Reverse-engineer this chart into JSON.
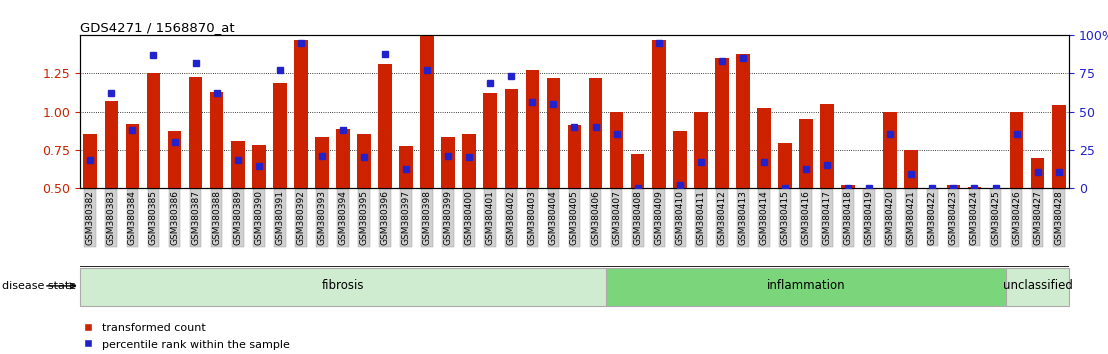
{
  "title": "GDS4271 / 1568870_at",
  "categories": [
    "GSM380382",
    "GSM380383",
    "GSM380384",
    "GSM380385",
    "GSM380386",
    "GSM380387",
    "GSM380388",
    "GSM380389",
    "GSM380390",
    "GSM380391",
    "GSM380392",
    "GSM380393",
    "GSM380394",
    "GSM380395",
    "GSM380396",
    "GSM380397",
    "GSM380398",
    "GSM380399",
    "GSM380400",
    "GSM380401",
    "GSM380402",
    "GSM380403",
    "GSM380404",
    "GSM380405",
    "GSM380406",
    "GSM380407",
    "GSM380408",
    "GSM380409",
    "GSM380410",
    "GSM380411",
    "GSM380412",
    "GSM380413",
    "GSM380414",
    "GSM380415",
    "GSM380416",
    "GSM380417",
    "GSM380418",
    "GSM380419",
    "GSM380420",
    "GSM380421",
    "GSM380422",
    "GSM380423",
    "GSM380424",
    "GSM380425",
    "GSM380426",
    "GSM380427",
    "GSM380428"
  ],
  "bar_values": [
    0.855,
    1.07,
    0.915,
    1.255,
    0.875,
    1.225,
    1.125,
    0.803,
    0.78,
    1.19,
    1.47,
    0.833,
    0.882,
    0.853,
    1.31,
    0.775,
    1.655,
    0.833,
    0.852,
    1.12,
    1.15,
    1.27,
    1.22,
    0.91,
    1.22,
    1.0,
    0.72,
    1.47,
    0.87,
    1.0,
    1.35,
    1.38,
    1.02,
    0.795,
    0.95,
    1.05,
    0.518,
    0.407,
    0.995,
    0.75,
    0.47,
    0.515,
    0.502,
    0.448,
    0.998,
    0.695,
    1.04
  ],
  "percentile_values": [
    18,
    62,
    38,
    87,
    30,
    82,
    62,
    18,
    14,
    77,
    95,
    21,
    38,
    20,
    88,
    12,
    77,
    21,
    20,
    69,
    73,
    56,
    55,
    40,
    40,
    35,
    0,
    95,
    2,
    17,
    83,
    85,
    17,
    0,
    12,
    15,
    0,
    0,
    35,
    9,
    0,
    0,
    0,
    0,
    35,
    10,
    10
  ],
  "groups": [
    {
      "label": "fibrosis",
      "start": 0,
      "end": 24,
      "color": "#d0ecd0",
      "border": "#aaaaaa"
    },
    {
      "label": "inflammation",
      "start": 25,
      "end": 43,
      "color": "#7bd67b",
      "border": "#aaaaaa"
    },
    {
      "label": "unclassified",
      "start": 44,
      "end": 46,
      "color": "#d0ecd0",
      "border": "#aaaaaa"
    }
  ],
  "ylim_left": [
    0.5,
    1.5
  ],
  "ylim_right": [
    0,
    100
  ],
  "yticks_left": [
    0.5,
    0.75,
    1.0,
    1.25
  ],
  "yticks_right": [
    0,
    25,
    50,
    75,
    100
  ],
  "bar_color": "#cc2200",
  "dot_color": "#2222cc",
  "tick_color_left": "#cc2200",
  "tick_color_right": "#2222cc",
  "legend_items": [
    "transformed count",
    "percentile rank within the sample"
  ],
  "disease_state_label": "disease state"
}
